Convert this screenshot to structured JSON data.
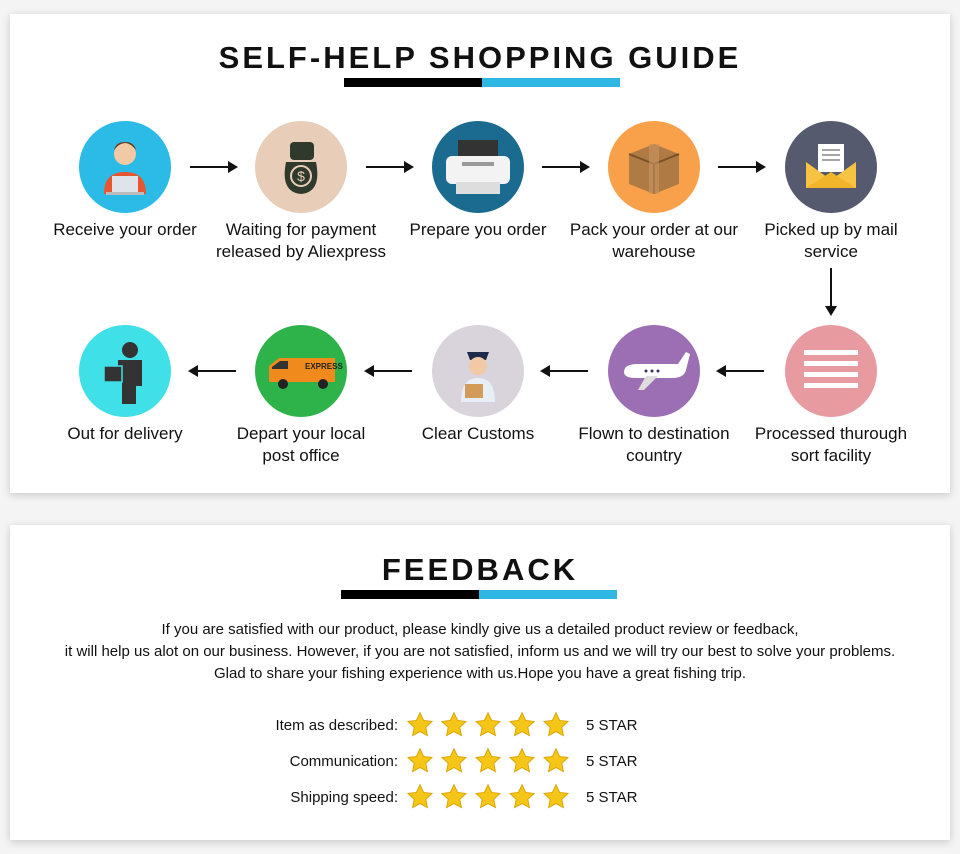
{
  "guide": {
    "title": "SELF-HELP SHOPPING GUIDE",
    "accent_colors": [
      "#000000",
      "#2fb7e4"
    ],
    "steps": [
      {
        "label1": "Receive your order",
        "label2": "",
        "icon": "person-laptop-icon",
        "color": "#2bbbe6"
      },
      {
        "label1": "Waiting for payment",
        "label2": "released by Aliexpress",
        "icon": "money-bag-icon",
        "color": "#e8cdb8"
      },
      {
        "label1": "Prepare you order",
        "label2": "",
        "icon": "printer-icon",
        "color": "#1a6b8f"
      },
      {
        "label1": "Pack your order at our",
        "label2": "warehouse",
        "icon": "box-icon",
        "color": "#f9a04a"
      },
      {
        "label1": "Picked up by mail",
        "label2": "service",
        "icon": "envelope-icon",
        "color": "#555a6e"
      },
      {
        "label1": "Processed thurough",
        "label2": "sort facility",
        "icon": "lines-icon",
        "color": "#e89aa1"
      },
      {
        "label1": "Flown to destination",
        "label2": "country",
        "icon": "airplane-icon",
        "color": "#9c6fb5"
      },
      {
        "label1": "Clear Customs",
        "label2": "",
        "icon": "customs-officer-icon",
        "color": "#d9d4dc"
      },
      {
        "label1": "Depart your local",
        "label2": "post office",
        "icon": "express-van-icon",
        "color": "#2db34a"
      },
      {
        "label1": "Out for delivery",
        "label2": "",
        "icon": "delivery-man-icon",
        "color": "#40e0e8"
      }
    ]
  },
  "feedback": {
    "title": "FEEDBACK",
    "lines": [
      "If you are satisfied with our product, please kindly give us a detailed product review or feedback,",
      "it will help us alot on our business. However, if you are not satisfied, inform us and we will try our best to solve your problems.",
      "Glad to share your fishing experience with us.Hope you have a great fishing trip."
    ],
    "ratings": [
      {
        "label": "Item as described:",
        "stars": 5,
        "value": "5 STAR"
      },
      {
        "label": "Communication:",
        "stars": 5,
        "value": "5 STAR"
      },
      {
        "label": "Shipping speed:",
        "stars": 5,
        "value": "5 STAR"
      }
    ],
    "star_color": "#f5c518"
  }
}
